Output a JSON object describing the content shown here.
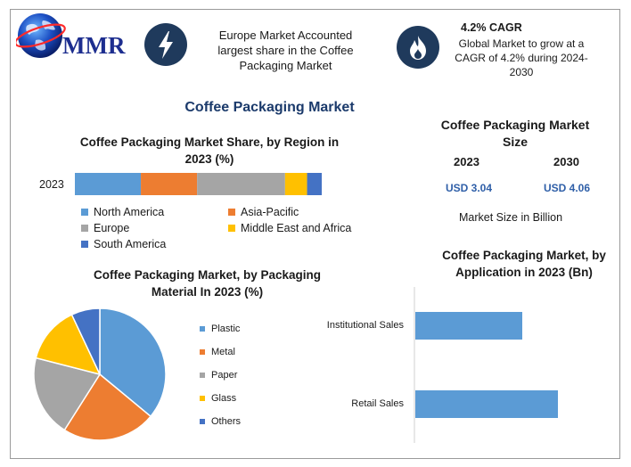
{
  "header": {
    "logo_text": "MMR",
    "europe_note": "Europe Market Accounted largest share in the Coffee Packaging Market",
    "cagr_title": "4.2% CAGR",
    "cagr_desc": "Global Market to grow at a CAGR of 4.2% during 2024-2030",
    "icons": [
      "lightning-icon",
      "flame-icon"
    ]
  },
  "main_title": "Coffee Packaging Market",
  "market_size": {
    "title": "Coffee Packaging Market Size",
    "year1": "2023",
    "year2": "2030",
    "value1": "USD 3.04",
    "value2": "USD 4.06",
    "unit_note": "Market Size in Billion"
  },
  "colors": {
    "blue": "#5b9bd5",
    "orange": "#ed7d31",
    "gray": "#a5a5a5",
    "yellow": "#ffc000",
    "dark_blue": "#4472c4",
    "icon_bg": "#1f3a5c"
  },
  "chart_data": [
    {
      "type": "bar",
      "orientation": "horizontal-stacked",
      "title": "Coffee Packaging Market Share, by Region in 2023 (%)",
      "categories": [
        "2023"
      ],
      "series": [
        {
          "name": "North America",
          "values": [
            27
          ]
        },
        {
          "name": "Asia-Pacific",
          "values": [
            23
          ]
        },
        {
          "name": "Europe",
          "values": [
            36
          ]
        },
        {
          "name": "Middle East and Africa",
          "values": [
            9
          ]
        },
        {
          "name": "South America",
          "values": [
            6
          ]
        }
      ],
      "legend_position": "bottom"
    },
    {
      "type": "pie",
      "title": "Coffee Packaging Market, by Packaging Material In 2023 (%)",
      "categories": [
        "Plastic",
        "Metal",
        "Paper",
        "Glass",
        "Others"
      ],
      "values": [
        36,
        23,
        20,
        14,
        7
      ],
      "legend_position": "right"
    },
    {
      "type": "bar",
      "orientation": "horizontal",
      "title": "Coffee Packaging Market, by Application in 2023 (Bn)",
      "categories": [
        "Institutional Sales",
        "Retail Sales"
      ],
      "values": [
        1.2,
        1.6
      ]
    }
  ]
}
